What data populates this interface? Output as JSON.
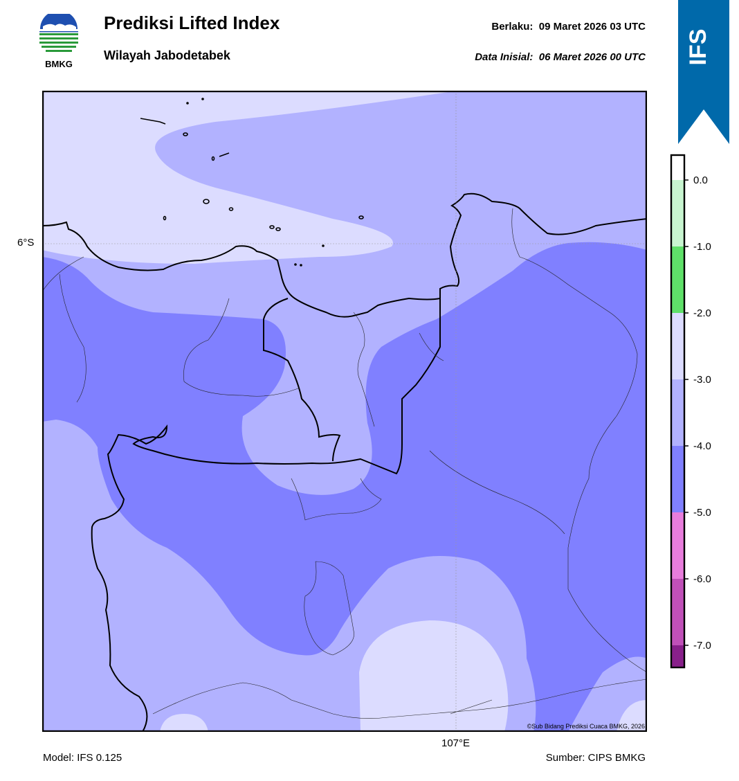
{
  "header": {
    "title": "Prediksi Lifted Index",
    "subtitle": "Wilayah Jabodetabek",
    "valid_label": "Berlaku:",
    "valid_time": "09 Maret 2026 03 UTC",
    "init_label": "Data Inisial:",
    "init_time": "06 Maret 2026 00 UTC"
  },
  "logo": {
    "text": "BMKG",
    "icon": "bmkg-logo-icon"
  },
  "ribbon": {
    "text": "IFS",
    "color": "#0069aa"
  },
  "map": {
    "lat_label": "6°S",
    "lon_label": "107°E",
    "credit": "©Sub Bidang Prediksi Cuaca BMKG, 2026"
  },
  "colorbar": {
    "ticks": [
      "0.0",
      "-1.0",
      "-2.0",
      "-3.0",
      "-4.0",
      "-5.0",
      "-6.0",
      "-7.0"
    ],
    "bins": [
      {
        "range": "0 to -1",
        "color": "#c8f5d0"
      },
      {
        "range": "-1 to -2",
        "color": "#5fe069"
      },
      {
        "range": "-2 to -3",
        "color": "#dcdcff"
      },
      {
        "range": "-3 to -4",
        "color": "#b2b2ff"
      },
      {
        "range": "-4 to -5",
        "color": "#8080ff"
      },
      {
        "range": "-5 to -6",
        "color": "#e87ddc"
      },
      {
        "range": "-6 to -7",
        "color": "#c050b8"
      },
      {
        "range": "< -7",
        "color": "#88208a"
      }
    ]
  },
  "footer": {
    "model": "Model: IFS 0.125",
    "source": "Sumber: CIPS BMKG"
  }
}
